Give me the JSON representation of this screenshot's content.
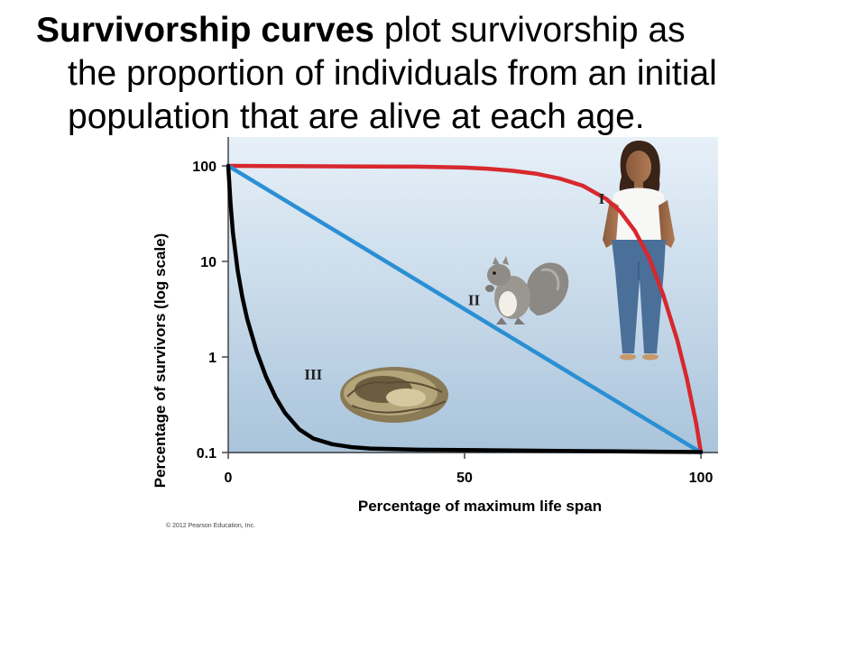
{
  "heading": {
    "bold_part": "Survivorship curves",
    "line1_rest": " plot survivorship as",
    "line2": "the proportion of individuals from an initial",
    "line3": "population that are alive at each age."
  },
  "copyright": "© 2012 Pearson Education, Inc.",
  "chart_data": {
    "type": "line",
    "title": "",
    "xlabel": "Percentage of maximum life span",
    "ylabel": "Percentage of survivors (log scale)",
    "xlim": [
      0,
      100
    ],
    "ylim": [
      0.1,
      100
    ],
    "y_scale": "log",
    "x_ticks": [
      0,
      50,
      100
    ],
    "y_ticks": [
      100,
      10,
      1,
      0.1
    ],
    "y_tick_labels": [
      "100",
      "10",
      "1",
      "0.1"
    ],
    "x_tick_labels": [
      "0",
      "50",
      "100"
    ],
    "background": "gradient light blue",
    "series": [
      {
        "name": "I",
        "color": "#d7282e",
        "label_pos": {
          "x": 79,
          "y": 40
        },
        "x": [
          0,
          10,
          20,
          30,
          40,
          50,
          55,
          60,
          65,
          70,
          75,
          80,
          83,
          86,
          89,
          92,
          95,
          97,
          99,
          100
        ],
        "y": [
          100,
          99.5,
          99,
          98.5,
          98,
          96,
          93,
          89,
          83,
          74,
          62,
          45,
          33,
          21,
          11,
          4.5,
          1.5,
          0.6,
          0.2,
          0.1
        ]
      },
      {
        "name": "II",
        "color": "#2b8fd4",
        "label_pos": {
          "x": 52,
          "y": 3.5
        },
        "x": [
          0,
          100
        ],
        "y": [
          100,
          0.1
        ]
      },
      {
        "name": "III",
        "color": "#000000",
        "label_pos": {
          "x": 18,
          "y": 0.58
        },
        "x": [
          0,
          0.5,
          1,
          2,
          3,
          4,
          5,
          6,
          8,
          10,
          12,
          15,
          18,
          22,
          26,
          30,
          40,
          50,
          60,
          70,
          80,
          90,
          100
        ],
        "y": [
          100,
          40,
          20,
          8,
          4.2,
          2.5,
          1.7,
          1.15,
          0.62,
          0.38,
          0.26,
          0.175,
          0.14,
          0.122,
          0.114,
          0.11,
          0.107,
          0.106,
          0.105,
          0.104,
          0.103,
          0.102,
          0.101
        ]
      }
    ]
  }
}
